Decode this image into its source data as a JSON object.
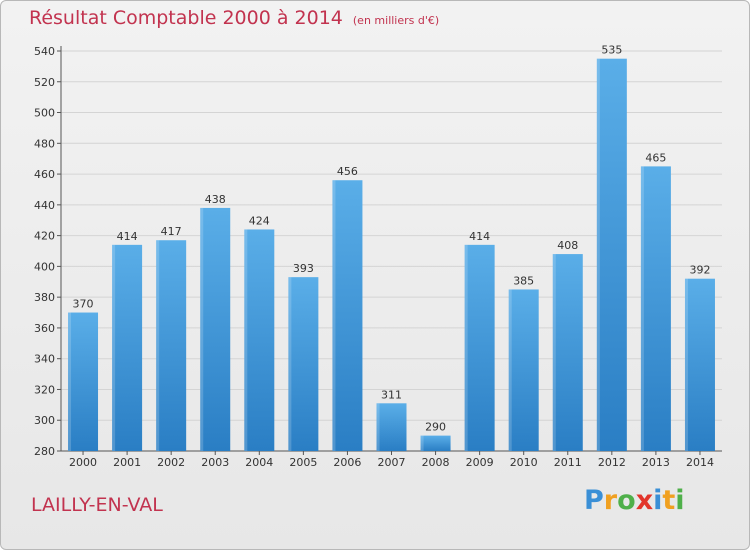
{
  "header": {
    "title": "Résultat Comptable 2000 à 2014",
    "unit_note": "(en milliers d'€)"
  },
  "footer": {
    "town": "LAILLY-EN-VAL",
    "logo_letters": [
      {
        "ch": "P",
        "color": "#3a8fd6"
      },
      {
        "ch": "r",
        "color": "#f0a020"
      },
      {
        "ch": "o",
        "color": "#4fb04a"
      },
      {
        "ch": "x",
        "color": "#e2352b"
      },
      {
        "ch": "i",
        "color": "#3a8fd6"
      },
      {
        "ch": "t",
        "color": "#f0a020"
      },
      {
        "ch": "i",
        "color": "#4fb04a"
      }
    ]
  },
  "colors": {
    "title": "#c2334f",
    "bar_top": "#5aaee8",
    "bar_bottom": "#2a7ec4"
  },
  "chart_data": {
    "type": "bar",
    "title": "Résultat Comptable 2000 à 2014",
    "ylabel": "",
    "xlabel": "",
    "ylim": [
      280,
      540
    ],
    "ytick_step": 20,
    "grid": true,
    "categories": [
      "2000",
      "2001",
      "2002",
      "2003",
      "2004",
      "2005",
      "2006",
      "2007",
      "2008",
      "2009",
      "2010",
      "2011",
      "2012",
      "2013",
      "2014"
    ],
    "values": [
      370,
      414,
      417,
      438,
      424,
      393,
      456,
      311,
      290,
      414,
      385,
      408,
      535,
      465,
      392
    ]
  }
}
